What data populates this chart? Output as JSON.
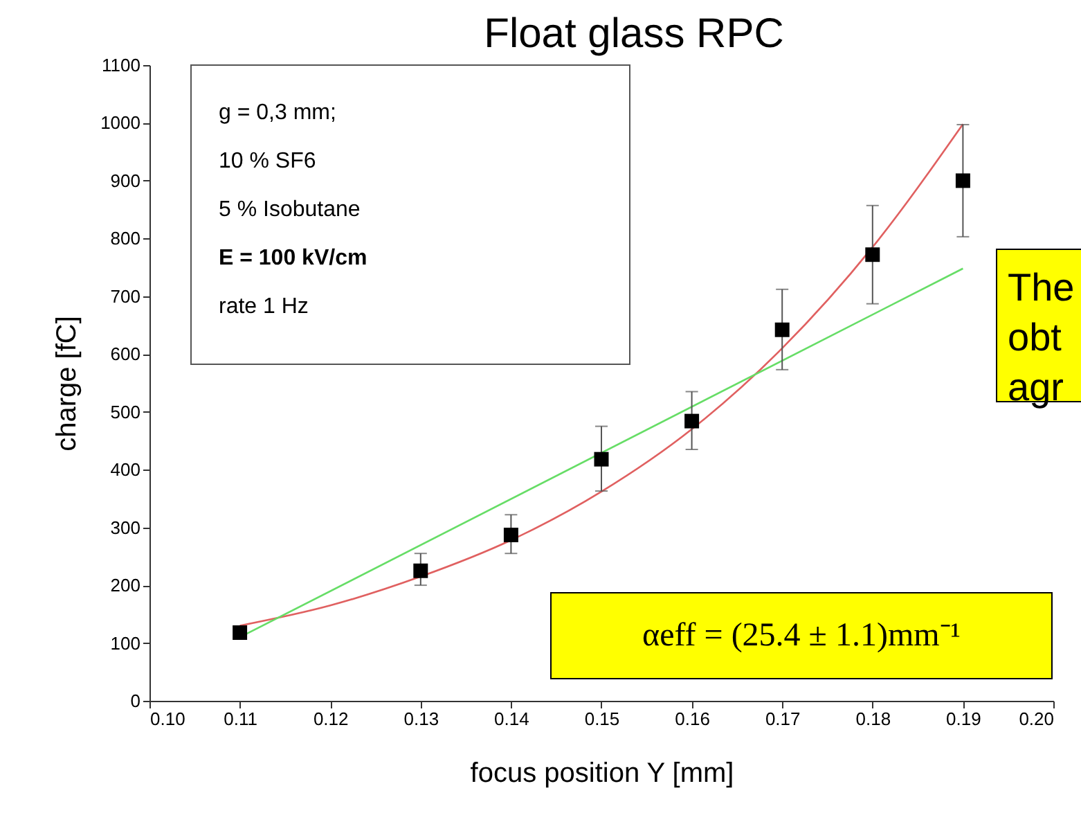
{
  "chart_data": {
    "type": "scatter",
    "title": "Float glass RPC",
    "xlabel": "focus position Y [mm]",
    "ylabel": "charge  [fC]",
    "xlim": [
      0.1,
      0.2
    ],
    "ylim": [
      0,
      1100
    ],
    "xticks": [
      {
        "value": 0.1,
        "label": "0.10"
      },
      0.11,
      0.12,
      0.13,
      0.14,
      0.15,
      0.16,
      0.17,
      0.18,
      0.19,
      {
        "value": 0.2,
        "label": "0.20"
      }
    ],
    "yticks": [
      0,
      100,
      200,
      300,
      400,
      500,
      600,
      700,
      800,
      900,
      1000,
      1100
    ],
    "grid": false,
    "series": [
      {
        "type": "line",
        "color": "#e06060",
        "x": [
          0.11,
          0.12,
          0.13,
          0.14,
          0.15,
          0.16,
          0.17,
          0.18,
          0.19
        ],
        "values": [
          130,
          165,
          215,
          278,
          362,
          470,
          610,
          785,
          998
        ]
      },
      {
        "type": "line",
        "color": "#66dd66",
        "x": [
          0.11,
          0.19
        ],
        "values": [
          110,
          748
        ]
      },
      {
        "marker": "square",
        "color": "#000000",
        "x": [
          0.11,
          0.13,
          0.14,
          0.15,
          0.16,
          0.17,
          0.18,
          0.19
        ],
        "values": [
          118,
          225,
          287,
          418,
          484,
          642,
          772,
          900
        ],
        "errors": [
          [
            110,
            126
          ],
          [
            200,
            255
          ],
          [
            255,
            322
          ],
          [
            363,
            475
          ],
          [
            435,
            535
          ],
          [
            573,
            712
          ],
          [
            687,
            857
          ],
          [
            803,
            997
          ]
        ]
      }
    ],
    "annotations": [
      "g = 0,3 mm;",
      "10 % SF6",
      " 5 % Isobutane",
      "E = 100 kV/cm",
      "rate 1 Hz",
      "The",
      "obt",
      "agr",
      "αeff = (25.4 ± 1.1)mm⁻¹"
    ]
  }
}
